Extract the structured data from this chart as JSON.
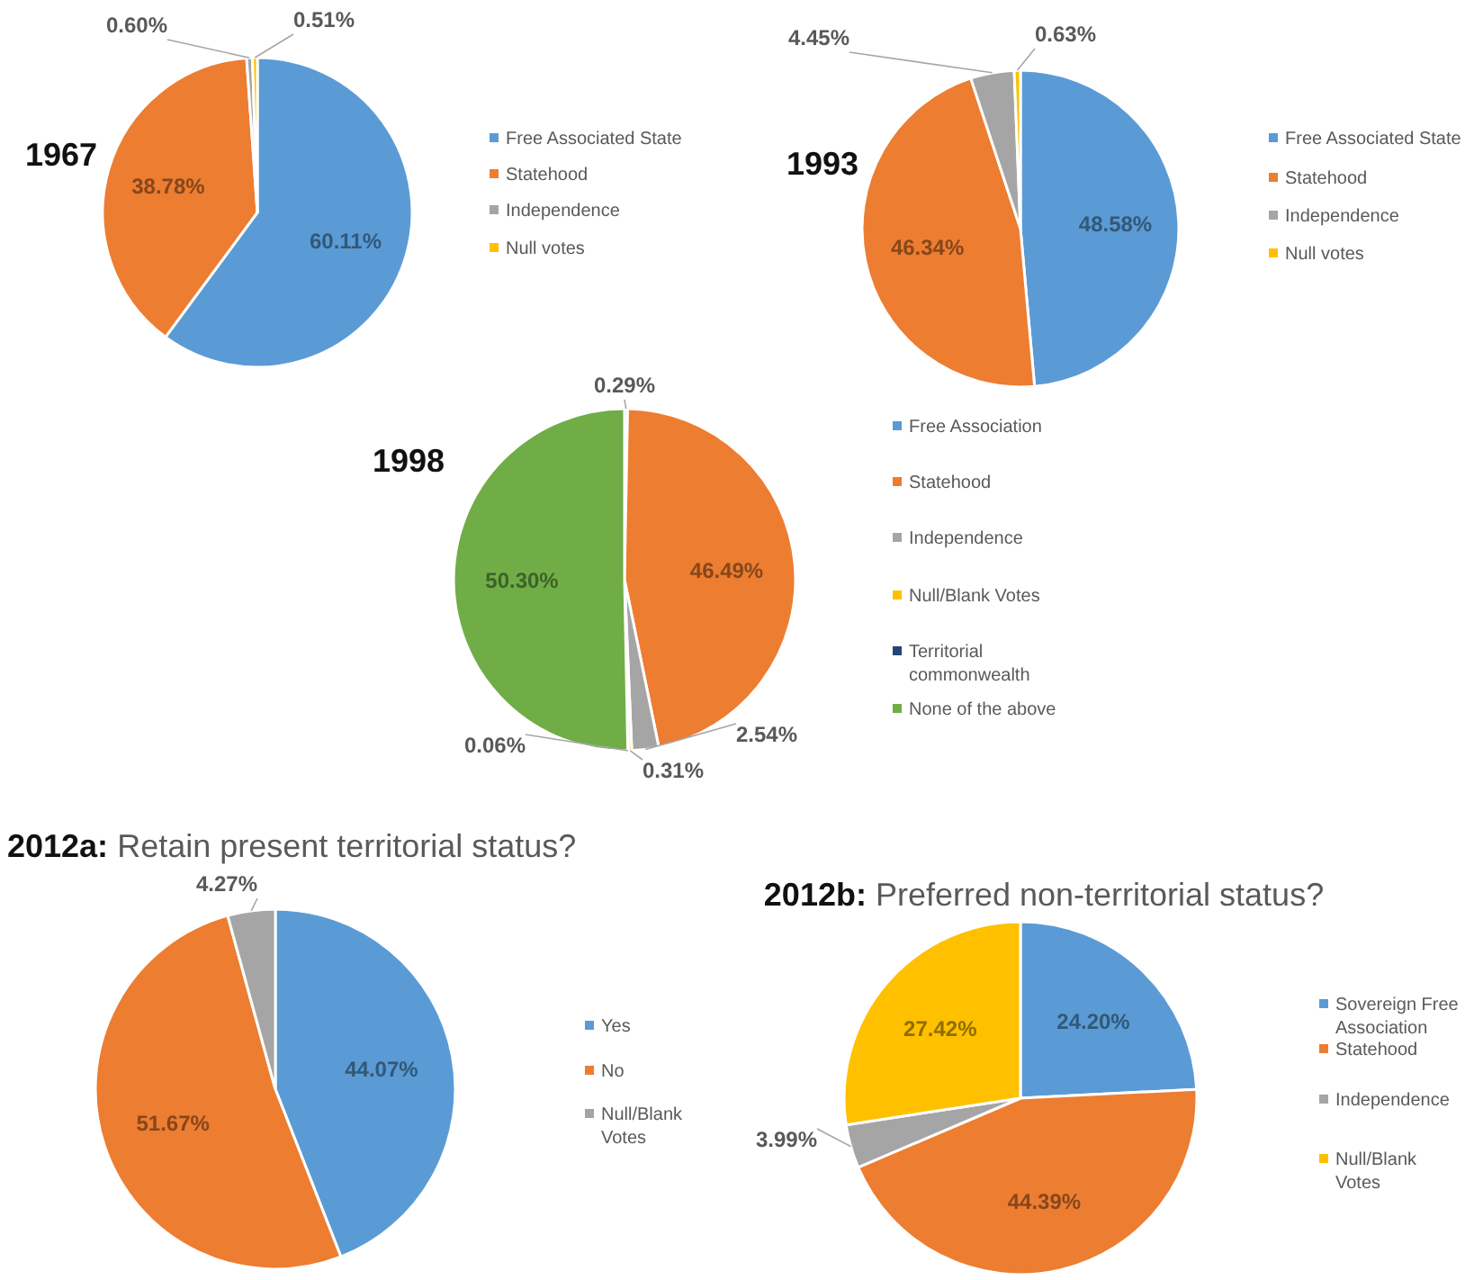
{
  "chart_data": [
    {
      "type": "pie",
      "title": "1967",
      "categories": [
        "Free Associated State",
        "Statehood",
        "Independence",
        "Null votes"
      ],
      "values": [
        60.11,
        38.78,
        0.6,
        0.51
      ],
      "colors": [
        "#5b9bd5",
        "#ed7d31",
        "#a5a5a5",
        "#ffc000"
      ],
      "value_labels": [
        "60.11%",
        "38.78%",
        "0.60%",
        "0.51%"
      ],
      "legend": "right"
    },
    {
      "type": "pie",
      "title": "1993",
      "categories": [
        "Free Associated State",
        "Statehood",
        "Independence",
        "Null votes"
      ],
      "values": [
        48.58,
        46.34,
        4.45,
        0.63
      ],
      "colors": [
        "#5b9bd5",
        "#ed7d31",
        "#a5a5a5",
        "#ffc000"
      ],
      "value_labels": [
        "48.58%",
        "46.34%",
        "4.45%",
        "0.63%"
      ],
      "legend": "right"
    },
    {
      "type": "pie",
      "title": "1998",
      "categories": [
        "Free Association",
        "Statehood",
        "Independence",
        "Null/Blank Votes",
        "Territorial commonwealth",
        "None of the above"
      ],
      "values": [
        0.29,
        46.49,
        2.54,
        0.31,
        0.06,
        50.3
      ],
      "colors": [
        "#5b9bd5",
        "#ed7d31",
        "#a5a5a5",
        "#ffc000",
        "#264478",
        "#70ad47"
      ],
      "value_labels": [
        "0.29%",
        "46.49%",
        "2.54%",
        "0.31%",
        "0.06%",
        "50.30%"
      ],
      "legend": "right"
    },
    {
      "type": "pie",
      "title": "2012a: Retain present territorial status?",
      "categories": [
        "Yes",
        "No",
        "Null/Blank Votes"
      ],
      "values": [
        44.07,
        51.67,
        4.27
      ],
      "colors": [
        "#5b9bd5",
        "#ed7d31",
        "#a5a5a5"
      ],
      "value_labels": [
        "44.07%",
        "51.67%",
        "4.27%"
      ],
      "legend": "right"
    },
    {
      "type": "pie",
      "title": "2012b: Preferred non-territorial status?",
      "categories": [
        "Sovereign Free Association",
        "Statehood",
        "Independence",
        "Null/Blank Votes"
      ],
      "values": [
        24.2,
        44.39,
        3.99,
        27.42
      ],
      "colors": [
        "#5b9bd5",
        "#ed7d31",
        "#a5a5a5",
        "#ffc000"
      ],
      "value_labels": [
        "24.20%",
        "44.39%",
        "3.99%",
        "27.42%"
      ],
      "legend": "right"
    }
  ]
}
